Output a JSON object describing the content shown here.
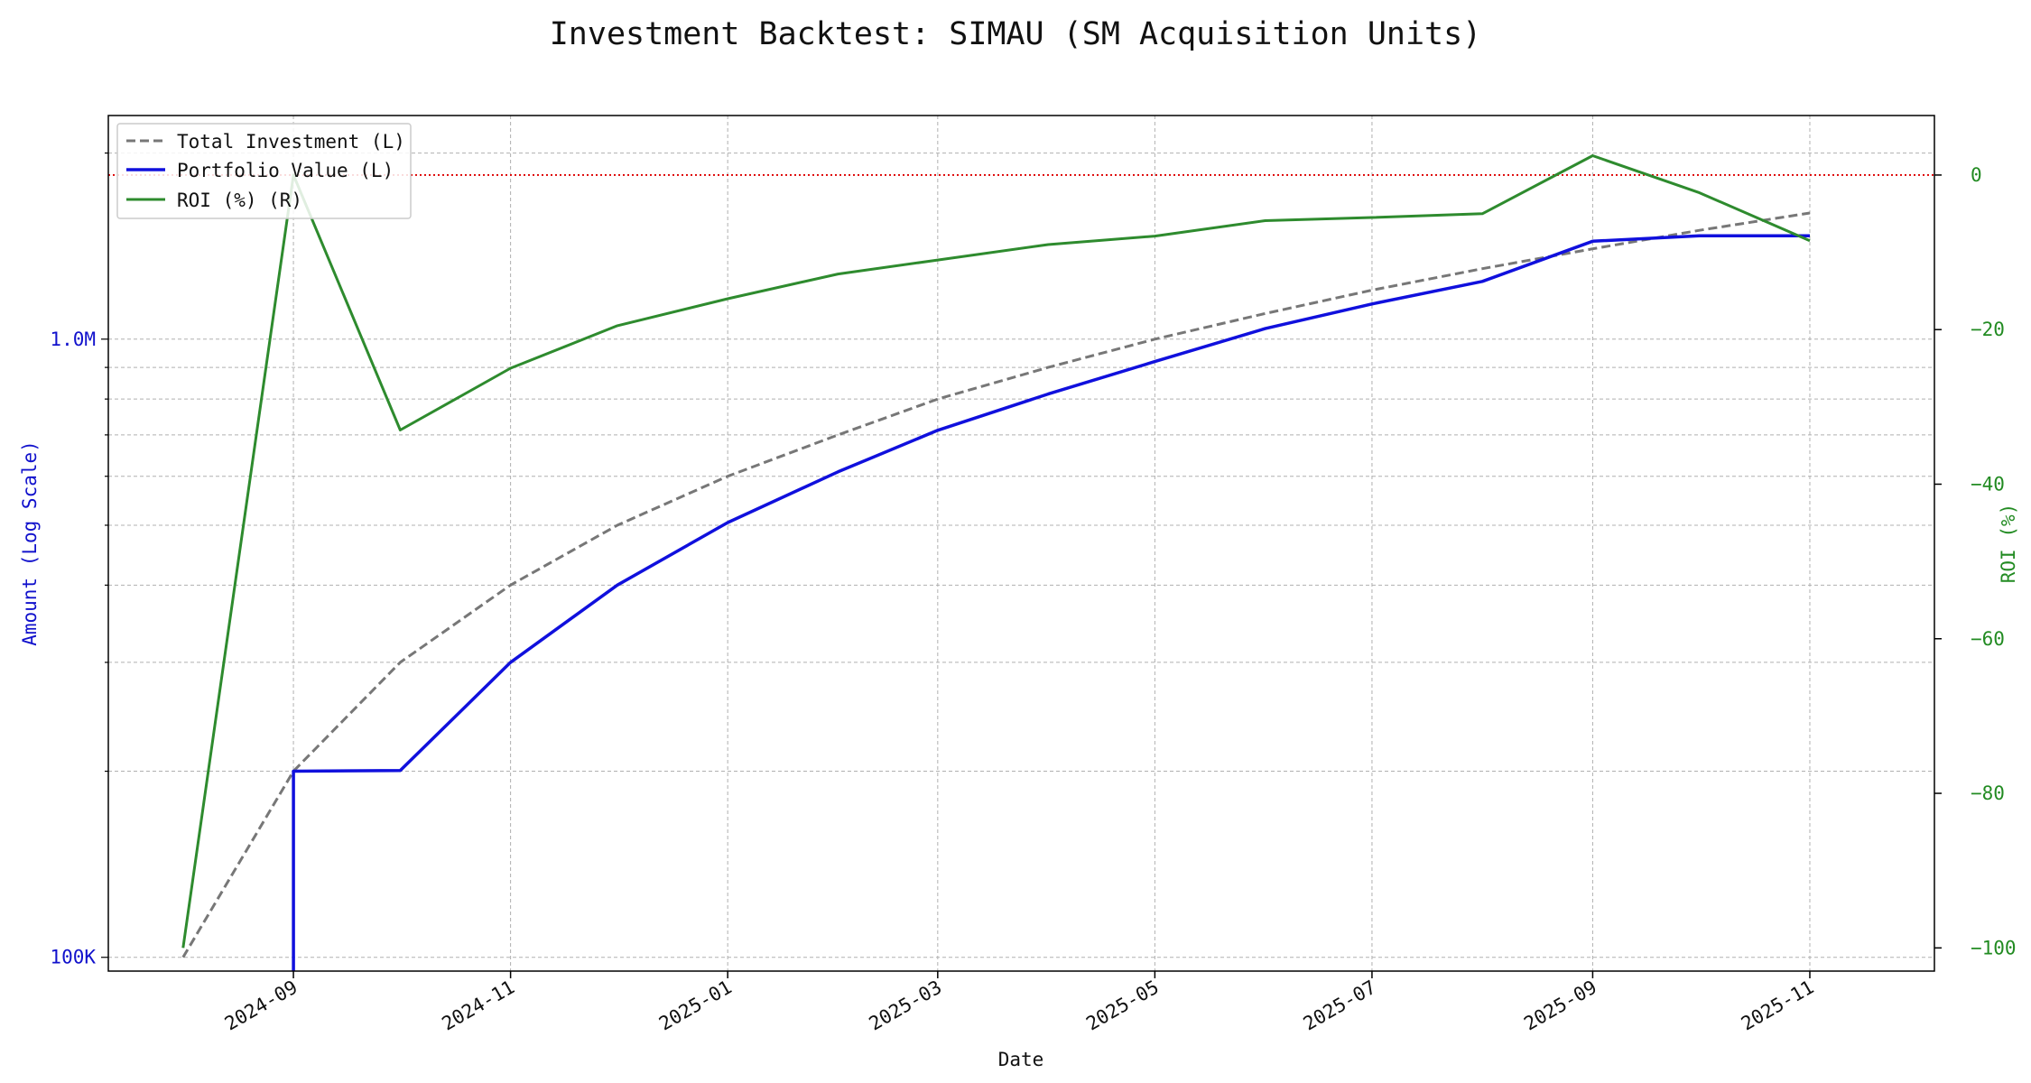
{
  "chart_data": {
    "type": "line",
    "title": "Investment Backtest: SIMAU (SM Acquisition Units)",
    "xlabel": "Date",
    "ylabel_left": "Amount (Log Scale)",
    "ylabel_right": "ROI (%)",
    "left_axis": {
      "scale": "log",
      "ylim": [
        95000,
        2300000
      ],
      "tick_values": [
        100000,
        1000000
      ],
      "tick_labels": [
        "100K",
        "1.0M"
      ],
      "color": "#1111cc"
    },
    "right_axis": {
      "scale": "linear",
      "ylim": [
        -103,
        7.7
      ],
      "tick_values": [
        0,
        -20,
        -40,
        -60,
        -80,
        -100
      ],
      "tick_labels": [
        "0",
        "−20",
        "−40",
        "−60",
        "−80",
        "−100"
      ],
      "color": "#228b22"
    },
    "x_axis": {
      "xlim": [
        "2024-07-11",
        "2025-12-06"
      ],
      "tick_dates": [
        "2024-09-01",
        "2024-11-01",
        "2025-01-01",
        "2025-03-01",
        "2025-05-01",
        "2025-07-01",
        "2025-09-01",
        "2025-11-01"
      ],
      "tick_labels": [
        "2024-09",
        "2024-11",
        "2025-01",
        "2025-03",
        "2025-05",
        "2025-07",
        "2025-09",
        "2025-11"
      ]
    },
    "grid": true,
    "legend_position": "top-left",
    "zero_reference_line": {
      "axis": "right",
      "value": 0,
      "color": "#dd0000",
      "style": "dotted"
    },
    "series": [
      {
        "name": "Total Investment (L)",
        "axis": "left",
        "color": "#777777",
        "style": "dashed",
        "x": [
          "2024-08-01",
          "2024-09-01",
          "2024-10-01",
          "2024-11-01",
          "2024-12-01",
          "2025-01-01",
          "2025-02-01",
          "2025-03-01",
          "2025-04-01",
          "2025-05-01",
          "2025-06-01",
          "2025-07-01",
          "2025-08-01",
          "2025-09-01",
          "2025-10-01",
          "2025-11-01"
        ],
        "y": [
          100000,
          200000,
          300000,
          400000,
          500000,
          600000,
          700000,
          800000,
          900000,
          1000000,
          1100000,
          1200000,
          1300000,
          1400000,
          1500000,
          1600000
        ]
      },
      {
        "name": "Portfolio Value (L)",
        "axis": "left",
        "color": "#1010dd",
        "style": "solid",
        "x": [
          "2024-09-01",
          "2024-09-01",
          "2024-10-01",
          "2024-11-01",
          "2024-12-01",
          "2025-01-01",
          "2025-02-01",
          "2025-03-01",
          "2025-04-01",
          "2025-05-01",
          "2025-06-01",
          "2025-07-01",
          "2025-08-01",
          "2025-09-01",
          "2025-10-01",
          "2025-11-01"
        ],
        "y": [
          80000,
          200000,
          200500,
          300000,
          400000,
          505000,
          610000,
          712000,
          815000,
          920000,
          1040000,
          1140000,
          1240000,
          1440000,
          1470000,
          1470000
        ]
      },
      {
        "name": "ROI (%) (R)",
        "axis": "right",
        "color": "#2e8b2e",
        "style": "solid",
        "x": [
          "2024-08-01",
          "2024-09-01",
          "2024-10-01",
          "2024-11-01",
          "2024-12-01",
          "2025-01-01",
          "2025-02-01",
          "2025-03-01",
          "2025-04-01",
          "2025-05-01",
          "2025-06-01",
          "2025-07-01",
          "2025-08-01",
          "2025-09-01",
          "2025-10-01",
          "2025-11-01"
        ],
        "y": [
          -100,
          0,
          -33,
          -25,
          -19.5,
          -16,
          -12.8,
          -11,
          -9,
          -7.9,
          -5.9,
          -5.5,
          -5,
          2.5,
          -2.3,
          -8.5
        ]
      }
    ]
  }
}
